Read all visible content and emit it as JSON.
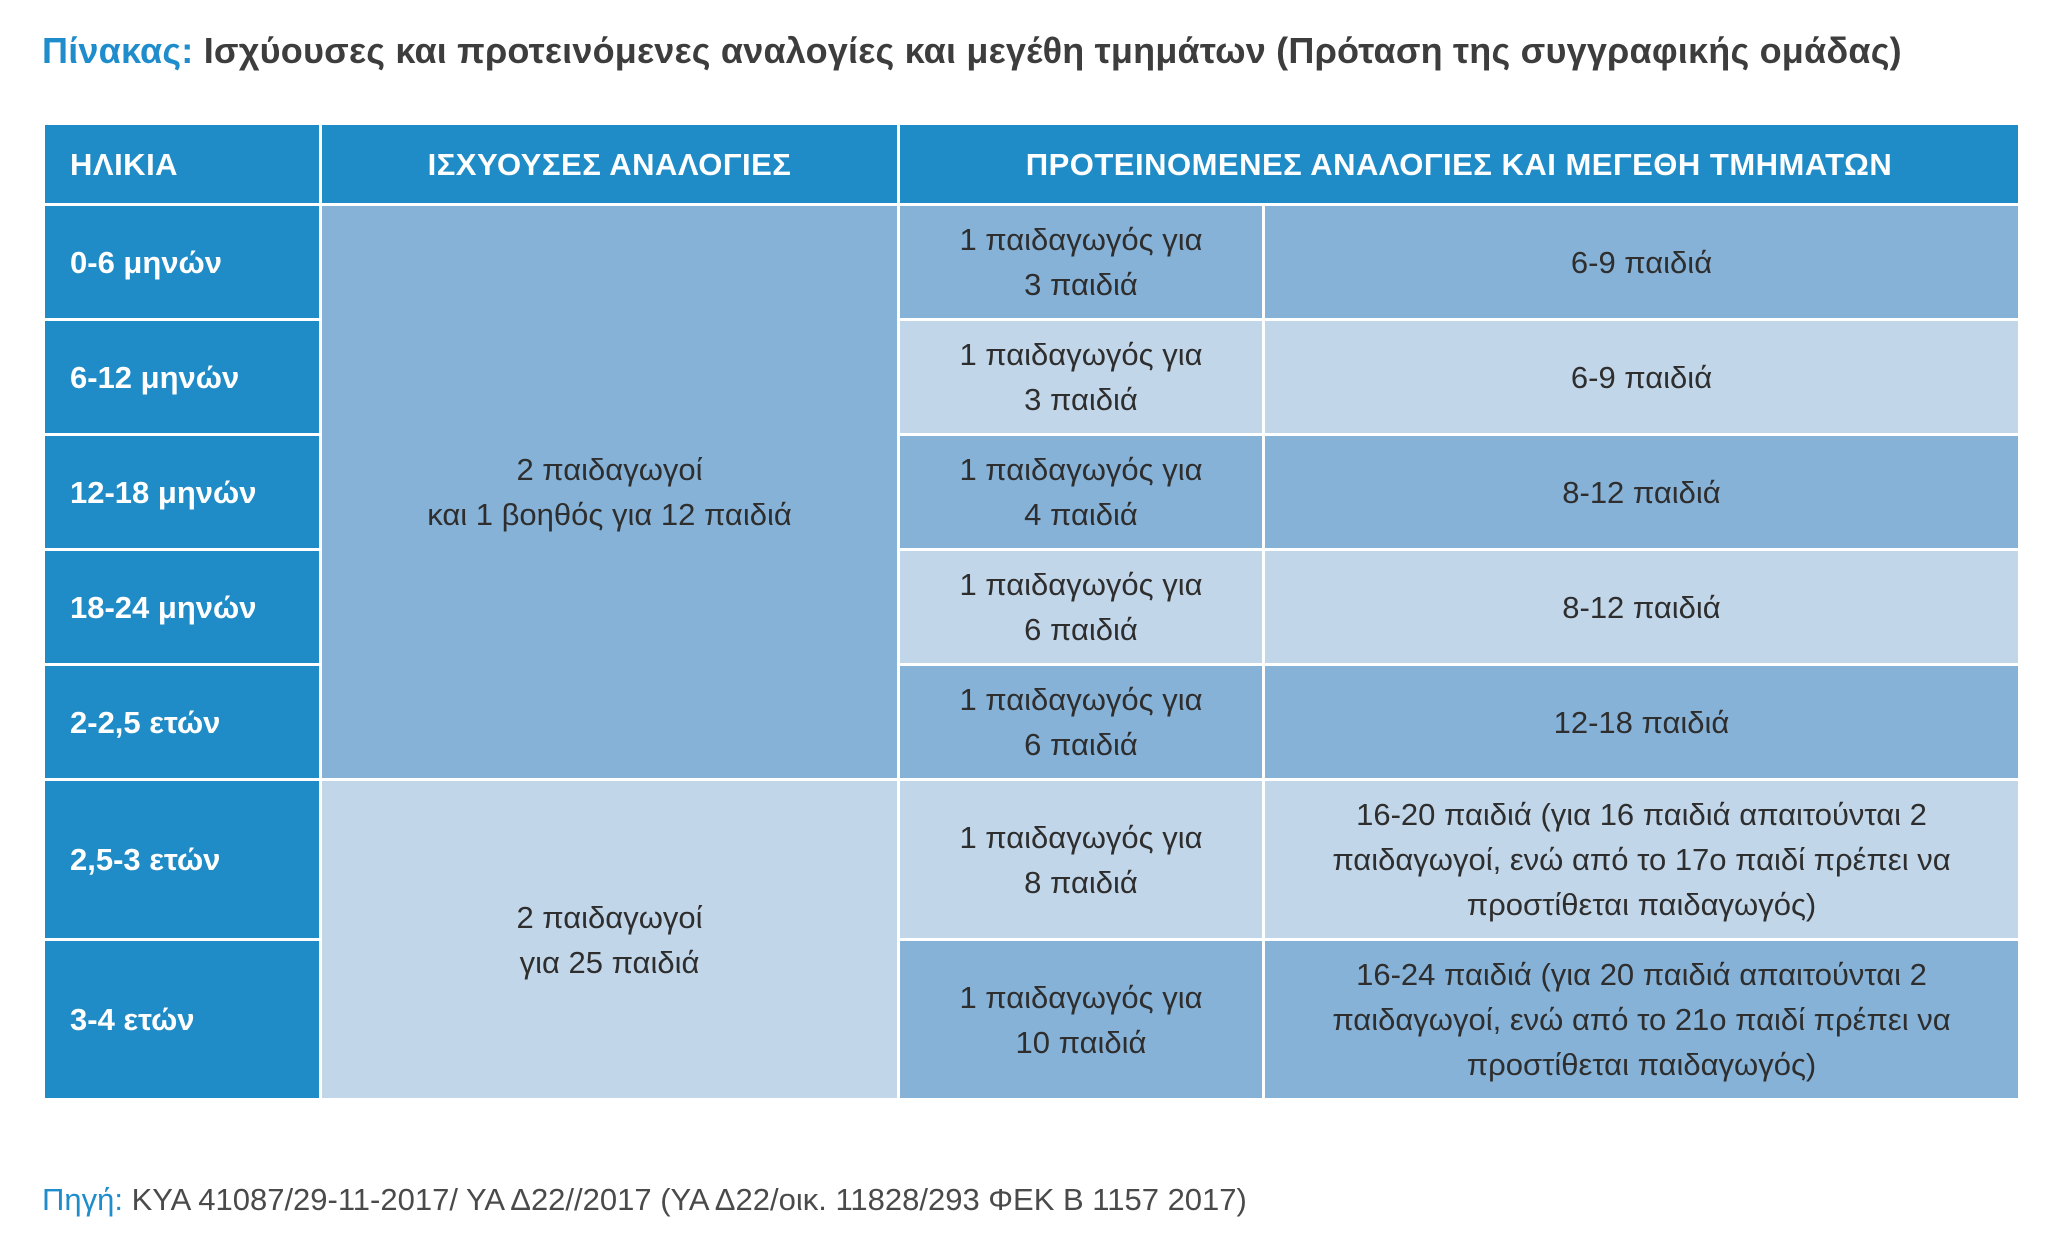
{
  "title": {
    "prefix": "Πίνακας:",
    "text": "Ισχύουσες και προτεινόμενες αναλογίες και μεγέθη τμημάτων (Πρόταση της συγγραφικής ομάδας)"
  },
  "headers": {
    "age": "ΗΛΙΚΙΑ",
    "current": "ΙΣΧΥΟΥΣΕΣ ΑΝΑΛΟΓΙΕΣ",
    "proposed": "ΠΡΟΤΕΙΝΟΜΕΝΕΣ ΑΝΑΛΟΓΙΕΣ ΚΑΙ ΜΕΓΕΘΗ ΤΜΗΜΑΤΩΝ"
  },
  "current_groups": [
    {
      "line1": "2 παιδαγωγοί",
      "line2": "και 1 βοηθός για 12 παιδιά"
    },
    {
      "line1": "2 παιδαγωγοί",
      "line2": "για 25 παιδιά"
    }
  ],
  "rows": [
    {
      "age": "0-6 μηνών",
      "ratio1": "1 παιδαγωγός για",
      "ratio2": "3 παιδιά",
      "size": "6-9 παιδιά"
    },
    {
      "age": "6-12 μηνών",
      "ratio1": "1 παιδαγωγός για",
      "ratio2": "3 παιδιά",
      "size": "6-9 παιδιά"
    },
    {
      "age": "12-18 μηνών",
      "ratio1": "1 παιδαγωγός για",
      "ratio2": "4 παιδιά",
      "size": "8-12 παιδιά"
    },
    {
      "age": "18-24 μηνών",
      "ratio1": "1 παιδαγωγός για",
      "ratio2": "6 παιδιά",
      "size": "8-12 παιδιά"
    },
    {
      "age": "2-2,5 ετών",
      "ratio1": "1 παιδαγωγός για",
      "ratio2": "6 παιδιά",
      "size": "12-18 παιδιά"
    },
    {
      "age": "2,5-3 ετών",
      "ratio1": "1 παιδαγωγός για",
      "ratio2": "8 παιδιά",
      "size1": "16-20 παιδιά (για 16 παιδιά απαιτούνται 2",
      "size2": "παιδαγωγοί, ενώ από το 17ο παιδί πρέπει να",
      "size3": "προστίθεται παιδαγωγός)"
    },
    {
      "age": "3-4 ετών",
      "ratio1": "1 παιδαγωγός για",
      "ratio2": "10 παιδιά",
      "size1": "16-24 παιδιά (για 20 παιδιά απαιτούνται 2",
      "size2": "παιδαγωγοί, ενώ από το 21ο παιδί πρέπει να",
      "size3": "προστίθεται παιδαγωγός)"
    }
  ],
  "source": {
    "prefix": "Πηγή:",
    "text": "ΚΥΑ 41087/29-11-2017/ ΥΑ Δ22//2017 (ΥΑ Δ22/οικ. 11828/293 ΦΕΚ Β 1157 2017)"
  }
}
